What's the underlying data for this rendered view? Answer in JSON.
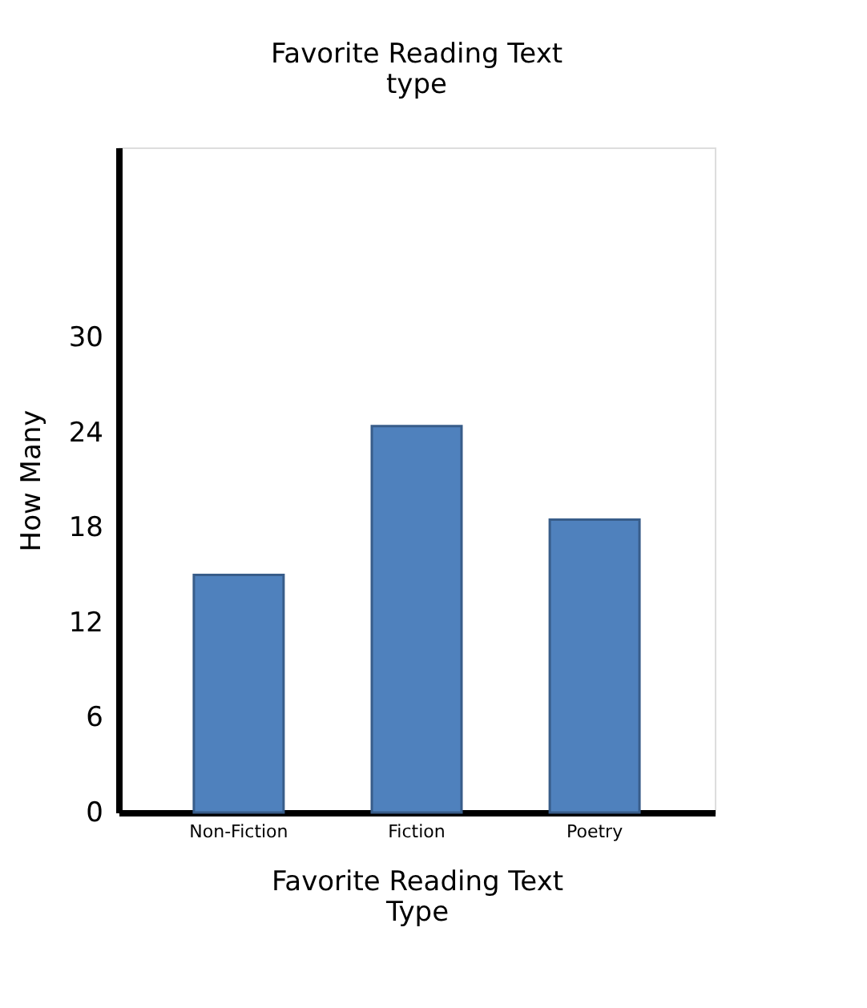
{
  "chart_data": {
    "type": "bar",
    "title": "Favorite Reading Text type",
    "xlabel": "Favorite Reading Text Type",
    "ylabel": "How Many",
    "categories": [
      "Non-Fiction",
      "Fiction",
      "Poetry"
    ],
    "values": [
      15,
      24.4,
      18.5
    ],
    "color": "#4f81bd",
    "ylim": [
      0,
      42
    ],
    "yticks": [
      0,
      6,
      12,
      18,
      24,
      30
    ],
    "grid": false
  }
}
